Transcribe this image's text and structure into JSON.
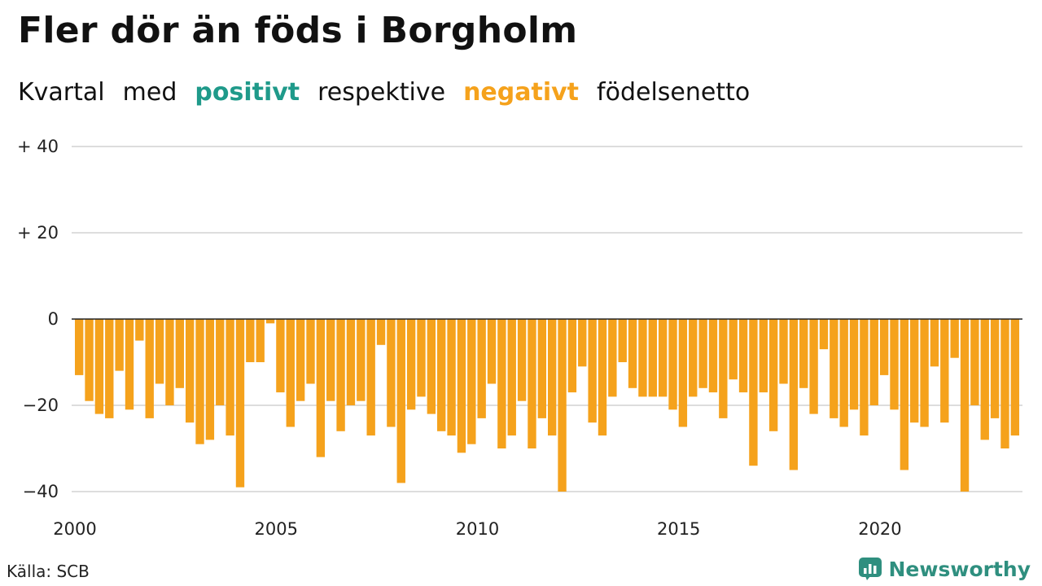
{
  "title": "Fler dör än föds i Borgholm",
  "subtitle": {
    "w1": "Kvartal",
    "w2": "med",
    "positive": "positivt",
    "w3": "respektive",
    "negative": "negativt",
    "w4": "födelsenetto"
  },
  "colors": {
    "positive": "#1f9a8a",
    "negative": "#f5a21c",
    "grid": "#dddddd",
    "zero": "#222222"
  },
  "source": "Källa: SCB",
  "brand": "Newsworthy",
  "chart_data": {
    "type": "bar",
    "x_start": "2000 Q1",
    "ylim": [
      -42,
      40
    ],
    "y_ticks": [
      40,
      20,
      0,
      -20,
      -40
    ],
    "y_tick_labels": [
      "+ 40",
      "+ 20",
      "0",
      "−20",
      "−40"
    ],
    "x_tick_labels": [
      "2000",
      "2005",
      "2010",
      "2015",
      "2020"
    ],
    "series": [
      {
        "values": [
          -13,
          -19,
          -22,
          -23,
          -12,
          -21,
          -5,
          -23,
          -15,
          -20,
          -16,
          -24,
          -29,
          -28,
          -20,
          -27,
          -39,
          -10,
          -10,
          -1,
          -17,
          -25,
          -19,
          -15,
          -32,
          -19,
          -26,
          -20,
          -19,
          -27,
          -6,
          -25,
          -38,
          -21,
          -18,
          -22,
          -26,
          -27,
          -31,
          -29,
          -23,
          -15,
          -30,
          -27,
          -19,
          -30,
          -23,
          -27,
          -40,
          -17,
          -11,
          -24,
          -27,
          -18,
          -10,
          -16,
          -18,
          -18,
          -18,
          -21,
          -25,
          -18,
          -16,
          -17,
          -23,
          -14,
          -17,
          -34,
          -17,
          -26,
          -15,
          -35,
          -16,
          -22,
          -7,
          -23,
          -25,
          -21,
          -27,
          -20,
          -13,
          -21,
          -35,
          -24,
          -25,
          -11,
          -24,
          -9,
          -40,
          -20,
          -28,
          -23,
          -30,
          -27
        ]
      }
    ]
  }
}
